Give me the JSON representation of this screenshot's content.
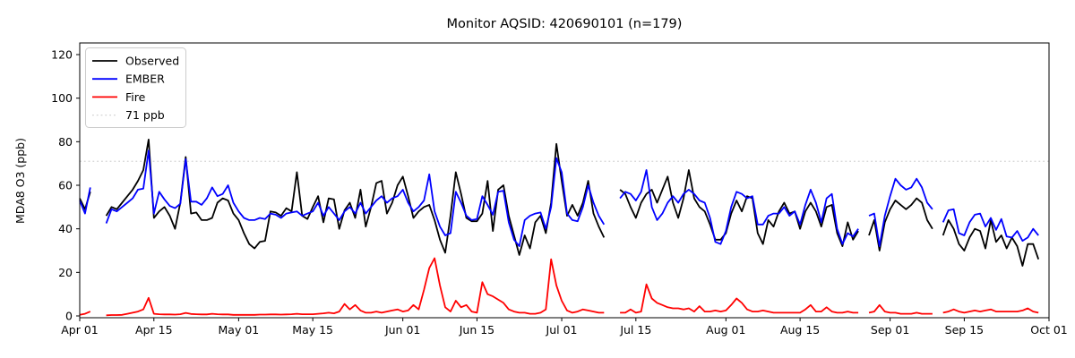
{
  "title": "Monitor AQSID: 420690101 (n=179)",
  "axes": {
    "ylabel": "MDA8 O3 (ppb)",
    "yticks": [
      0,
      20,
      40,
      60,
      80,
      100,
      120
    ],
    "xtick_labels": [
      "Apr 01",
      "Apr 15",
      "May 01",
      "May 15",
      "Jun 01",
      "Jun 15",
      "Jul 01",
      "Jul 15",
      "Aug 01",
      "Aug 15",
      "Sep 01",
      "Sep 15",
      "Oct 01"
    ],
    "xtick_day_offsets": [
      0,
      14,
      30,
      44,
      61,
      75,
      91,
      105,
      122,
      136,
      153,
      167,
      183
    ]
  },
  "legend": {
    "items": [
      {
        "label": "Observed",
        "color": "#000000",
        "dashed": false
      },
      {
        "label": "EMBER",
        "color": "#0000ff",
        "dashed": false
      },
      {
        "label": "Fire",
        "color": "#ff0000",
        "dashed": false
      },
      {
        "label": "71 ppb",
        "color": "#d3d3d3",
        "dashed": true
      }
    ]
  },
  "colors": {
    "observed": "#000000",
    "ember": "#0000ff",
    "fire": "#ff0000",
    "ref_line": "#d3d3d3",
    "spine": "#000000",
    "background": "#ffffff"
  },
  "chart_data": {
    "type": "line",
    "title": "Monitor AQSID: 420690101 (n=179)",
    "xlabel": "",
    "ylabel": "MDA8 O3 (ppb)",
    "x_start": "Apr 01",
    "x_end": "Oct 01",
    "x_total_days": 183,
    "ylim": [
      -1,
      126
    ],
    "grid": false,
    "legend_position": "upper left",
    "ref_line": {
      "value": 71,
      "label": "71 ppb"
    },
    "n_points_label": 179,
    "series": [
      {
        "name": "Observed",
        "color": "#000000",
        "values": [
          54,
          49,
          57,
          null,
          null,
          46,
          50,
          49,
          52,
          55,
          58,
          62,
          67,
          81,
          45,
          48,
          50,
          46,
          40,
          52,
          73,
          47,
          47.5,
          44,
          44,
          45,
          52,
          54,
          53,
          47,
          44,
          38,
          33,
          31,
          34,
          34.5,
          48,
          47.5,
          46,
          49.5,
          48,
          66,
          46,
          44.5,
          50,
          55,
          43,
          54,
          53.5,
          40,
          48.5,
          52,
          45,
          58,
          41,
          50,
          61,
          62,
          47,
          52,
          60,
          64,
          55,
          45,
          48,
          50,
          51,
          44,
          35,
          29,
          46,
          66,
          56,
          45,
          43.5,
          43.5,
          47,
          62,
          39,
          58,
          60,
          46,
          37,
          28,
          37,
          31,
          43,
          46,
          38,
          52,
          79,
          62,
          46,
          51,
          46,
          52,
          62,
          47,
          41,
          36,
          null,
          null,
          58,
          56,
          50,
          45,
          52,
          56,
          58,
          52,
          58,
          64,
          52,
          45,
          54,
          67,
          54,
          50,
          48,
          42,
          35,
          35,
          38,
          47,
          53,
          48,
          55,
          54,
          38,
          33,
          44,
          41,
          48,
          52,
          47,
          48,
          40,
          48,
          52,
          48,
          41,
          50,
          51,
          38,
          32,
          43,
          35,
          39,
          null,
          37,
          44,
          30,
          43,
          49,
          53,
          51,
          49,
          51,
          54,
          52,
          44,
          40,
          null,
          37,
          44,
          40,
          33,
          30,
          36,
          40,
          39,
          31,
          44,
          34,
          37,
          31,
          36,
          32,
          23,
          33,
          33,
          26
        ]
      },
      {
        "name": "EMBER",
        "color": "#0000ff",
        "values": [
          53,
          47,
          59,
          null,
          null,
          42.5,
          49,
          48,
          50,
          52,
          54,
          58,
          58.5,
          76,
          47,
          57,
          53.5,
          50.5,
          49.5,
          51.5,
          72,
          52.5,
          52.5,
          51,
          54,
          59,
          55,
          56,
          60,
          52,
          48,
          45,
          44,
          44,
          45,
          44.5,
          47,
          46.5,
          45,
          47,
          47.5,
          48,
          46,
          47,
          48,
          52,
          46,
          50,
          47,
          44,
          48,
          50,
          47,
          52,
          47,
          50,
          53,
          55,
          52,
          54,
          55,
          58,
          52,
          48,
          50,
          53,
          65,
          48,
          41,
          37,
          38,
          57,
          52,
          46,
          44,
          44.5,
          55,
          51,
          46.5,
          57,
          57.5,
          43,
          35,
          32,
          44,
          46,
          47,
          47.5,
          40,
          50,
          72.5,
          66,
          47,
          44,
          43.5,
          50,
          60,
          52,
          46,
          42,
          null,
          null,
          54,
          57,
          56,
          53,
          57,
          67,
          50,
          44,
          47,
          52,
          55,
          52,
          56,
          58,
          56,
          53,
          52,
          45,
          34,
          33,
          39,
          50,
          57,
          56,
          54,
          55,
          42,
          42,
          46,
          47,
          47,
          50,
          46,
          48,
          42,
          51,
          58,
          52,
          43,
          54,
          56,
          40,
          33,
          38,
          36.5,
          40,
          null,
          46,
          47,
          32,
          46,
          55,
          63,
          60,
          58,
          59,
          63,
          59,
          52,
          49,
          null,
          43,
          48.5,
          49,
          38,
          37,
          43,
          46.5,
          47,
          41,
          45,
          39.5,
          44.5,
          36.5,
          36,
          39,
          34.5,
          36,
          40,
          37
        ]
      },
      {
        "name": "Fire",
        "color": "#ff0000",
        "values": [
          0.5,
          1,
          2,
          null,
          null,
          0.3,
          0.4,
          0.4,
          0.5,
          1,
          1.5,
          2,
          3,
          8.3,
          1,
          0.8,
          0.7,
          0.7,
          0.6,
          0.8,
          1.4,
          0.9,
          0.8,
          0.7,
          0.7,
          1,
          0.8,
          0.7,
          0.7,
          0.5,
          0.5,
          0.5,
          0.5,
          0.5,
          0.6,
          0.6,
          0.7,
          0.7,
          0.6,
          0.7,
          0.8,
          1,
          0.8,
          0.8,
          0.8,
          1,
          1.2,
          1.5,
          1.2,
          2,
          5.5,
          3,
          5,
          2.5,
          1.5,
          1.5,
          2,
          1.5,
          2,
          2.5,
          3,
          2,
          2.5,
          5,
          3,
          12,
          22,
          26.5,
          14,
          4,
          2,
          7,
          4,
          5,
          2,
          1.5,
          15.5,
          10,
          9,
          7.5,
          6,
          3,
          2,
          1.5,
          1.5,
          1,
          1,
          1.5,
          3,
          26,
          14,
          7,
          2.5,
          1.5,
          2,
          3,
          2.5,
          2,
          1.5,
          1.5,
          null,
          null,
          1.5,
          1.5,
          3,
          1.5,
          2,
          14.5,
          8,
          6,
          5,
          4,
          3.5,
          3.5,
          3,
          3.5,
          2,
          4.5,
          2,
          2,
          2.5,
          2,
          2.5,
          5,
          8,
          6,
          3,
          2,
          2,
          2.5,
          2,
          1.5,
          1.5,
          1.5,
          1.5,
          1.5,
          1.5,
          3,
          5,
          2,
          2,
          4,
          2,
          1.5,
          1.5,
          2,
          1.5,
          1.5,
          null,
          1.5,
          2,
          5,
          2,
          1.5,
          1.5,
          1,
          1,
          1,
          1.5,
          1,
          1,
          1,
          null,
          1.5,
          2,
          3,
          2,
          1.5,
          2,
          2.5,
          2,
          2.5,
          3,
          2,
          2,
          2,
          2,
          2,
          2.5,
          3.5,
          2,
          1.5
        ]
      }
    ]
  }
}
